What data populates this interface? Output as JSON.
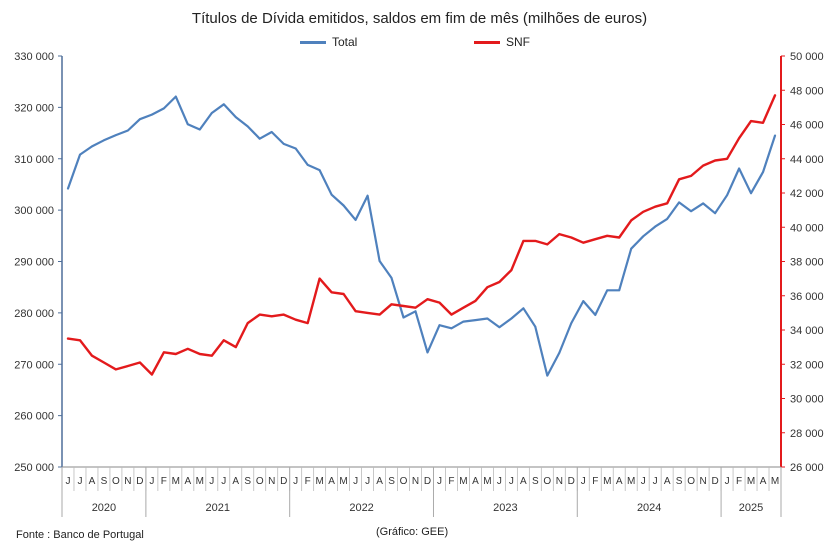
{
  "chart_data": {
    "type": "line",
    "title": "Títulos de Dívida emitidos, saldos em fim de mês  (milhões de euros)",
    "series": [
      {
        "name": "Total",
        "axis": "left",
        "color": "#4f81bd",
        "values": [
          304200,
          310800,
          312400,
          313600,
          314600,
          315500,
          317700,
          318600,
          319800,
          322100,
          316700,
          315700,
          318900,
          320600,
          318100,
          316300,
          313900,
          315200,
          312900,
          312000,
          308800,
          307800,
          303000,
          300900,
          298100,
          302800,
          290100,
          286800,
          279100,
          280300,
          272300,
          277600,
          277000,
          278300,
          278600,
          278900,
          277200,
          278900,
          280900,
          277300,
          267800,
          272200,
          278000,
          282300,
          279600,
          284400,
          284400,
          292500,
          294900,
          296800,
          298300,
          301500,
          299800,
          301300,
          299400,
          302900,
          308100,
          303300,
          307400,
          314500
        ]
      },
      {
        "name": "SNF",
        "axis": "right",
        "color": "#e31a1c",
        "values": [
          33500,
          33400,
          32500,
          32100,
          31700,
          31900,
          32100,
          31400,
          32700,
          32600,
          32900,
          32600,
          32500,
          33400,
          33000,
          34400,
          34900,
          34800,
          34900,
          34600,
          34400,
          37000,
          36200,
          36100,
          35100,
          35000,
          34900,
          35500,
          35400,
          35300,
          35800,
          35600,
          34900,
          35300,
          35700,
          36500,
          36800,
          37500,
          39200,
          39200,
          39000,
          39600,
          39400,
          39100,
          39300,
          39500,
          39400,
          40400,
          40900,
          41200,
          41400,
          42800,
          43000,
          43600,
          43900,
          44000,
          45200,
          46200,
          46100,
          47700
        ]
      }
    ],
    "x_months": [
      "J",
      "J",
      "A",
      "S",
      "O",
      "N",
      "D",
      "J",
      "F",
      "M",
      "A",
      "M",
      "J",
      "J",
      "A",
      "S",
      "O",
      "N",
      "D",
      "J",
      "F",
      "M",
      "A",
      "M",
      "J",
      "J",
      "A",
      "S",
      "O",
      "N",
      "D",
      "J",
      "F",
      "M",
      "A",
      "M",
      "J",
      "J",
      "A",
      "S",
      "O",
      "N",
      "D",
      "J",
      "F",
      "M",
      "A",
      "M",
      "J",
      "J",
      "A",
      "S",
      "O",
      "N",
      "D",
      "J",
      "F",
      "M",
      "A",
      "M"
    ],
    "x_years": [
      {
        "label": "2020",
        "start": 0,
        "end": 6
      },
      {
        "label": "2021",
        "start": 7,
        "end": 18
      },
      {
        "label": "2022",
        "start": 19,
        "end": 30
      },
      {
        "label": "2023",
        "start": 31,
        "end": 42
      },
      {
        "label": "2024",
        "start": 43,
        "end": 54
      },
      {
        "label": "2025",
        "start": 55,
        "end": 59
      }
    ],
    "y_left": {
      "min": 250000,
      "max": 330000,
      "step": 10000,
      "ticks": [
        "250 000",
        "260 000",
        "270 000",
        "280 000",
        "290 000",
        "300 000",
        "310 000",
        "320 000",
        "330 000"
      ]
    },
    "y_right": {
      "min": 26000,
      "max": 50000,
      "step": 2000,
      "ticks": [
        "26 000",
        "28 000",
        "30 000",
        "32 000",
        "34 000",
        "36 000",
        "38 000",
        "40 000",
        "42 000",
        "44 000",
        "46 000",
        "48 000",
        "50 000"
      ]
    },
    "legend_position": "top"
  },
  "footer": {
    "source": "Fonte : Banco de Portugal",
    "credit": "(Gráfico: GEE)"
  }
}
